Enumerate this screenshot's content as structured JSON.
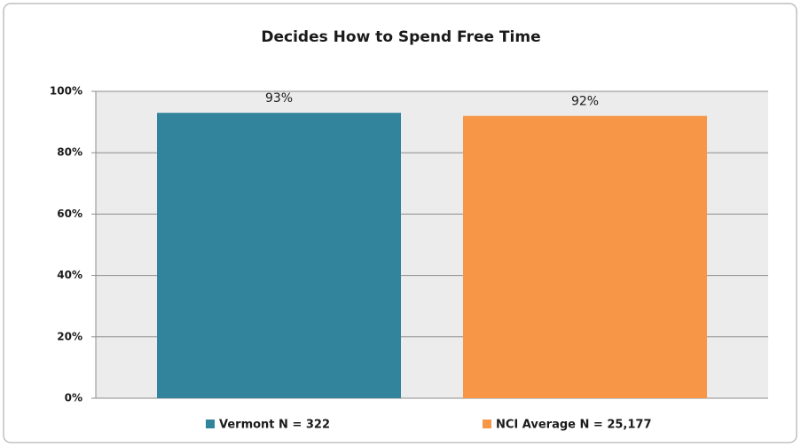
{
  "chart_data": {
    "type": "bar",
    "title": "Decides How to Spend Free Time",
    "categories": [
      null
    ],
    "series": [
      {
        "name": "Vermont N = 322",
        "color": "#31849b",
        "values": [
          93
        ],
        "value_labels": [
          "93%"
        ]
      },
      {
        "name": "NCI Average N = 25,177",
        "color": "#f79646",
        "values": [
          92
        ],
        "value_labels": [
          "92%"
        ]
      }
    ],
    "ylim": [
      0,
      100
    ],
    "yticks": [
      {
        "value": 0,
        "label": "0%"
      },
      {
        "value": 20,
        "label": "20%"
      },
      {
        "value": 40,
        "label": "40%"
      },
      {
        "value": 60,
        "label": "60%"
      },
      {
        "value": 80,
        "label": "80%"
      },
      {
        "value": 100,
        "label": "100%"
      }
    ],
    "grid": true,
    "legend": "bottom"
  }
}
